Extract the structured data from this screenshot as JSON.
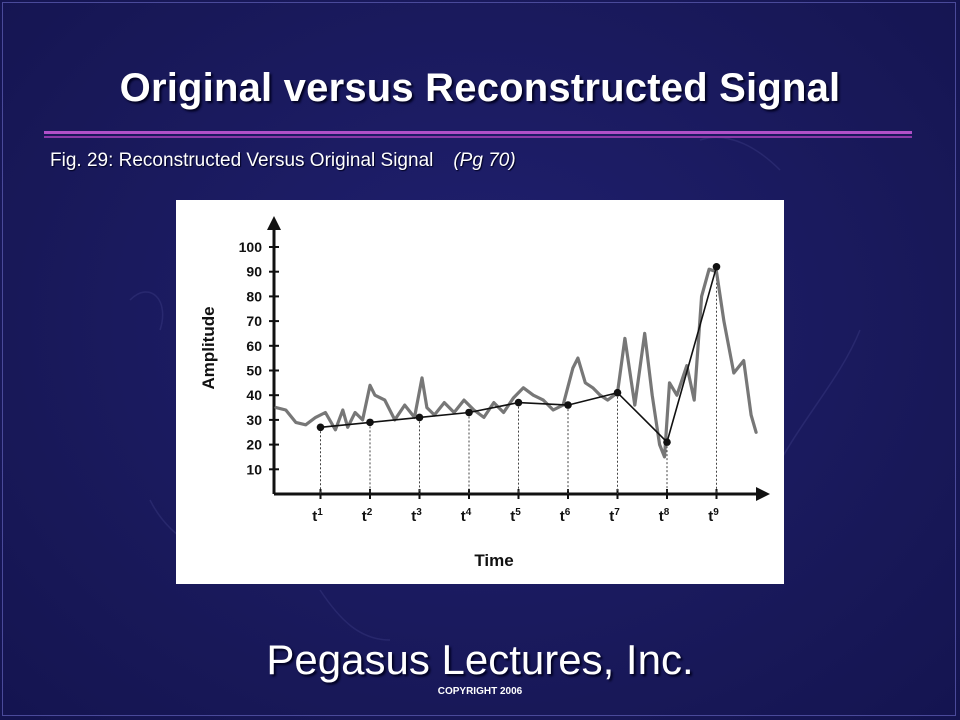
{
  "slide": {
    "title": "Original versus Reconstructed Signal",
    "subtitle": "Fig. 29: Reconstructed Versus Original Signal",
    "page_ref": "(Pg 70)",
    "footer": "Pegasus Lectures, Inc.",
    "copyright": "COPYRIGHT 2006",
    "colors": {
      "background": "#1a1a5e",
      "rule": "#b050c8",
      "text": "#ffffff"
    }
  },
  "chart_data": {
    "type": "line",
    "title": "",
    "xlabel": "Time",
    "ylabel": "Amplitude",
    "ylim": [
      0,
      100
    ],
    "yticks": [
      10,
      20,
      30,
      40,
      50,
      60,
      70,
      80,
      90,
      100
    ],
    "xticks": [
      {
        "base": "t",
        "sup": "1",
        "x": 1
      },
      {
        "base": "t",
        "sup": "2",
        "x": 2
      },
      {
        "base": "t",
        "sup": "3",
        "x": 3
      },
      {
        "base": "t",
        "sup": "4",
        "x": 4
      },
      {
        "base": "t",
        "sup": "5",
        "x": 5
      },
      {
        "base": "t",
        "sup": "6",
        "x": 6
      },
      {
        "base": "t",
        "sup": "7",
        "x": 7
      },
      {
        "base": "t",
        "sup": "8",
        "x": 8
      },
      {
        "base": "t",
        "sup": "9",
        "x": 9
      }
    ],
    "grid": false,
    "legend": "none",
    "series": [
      {
        "role": "original",
        "color": "#777777",
        "x": [
          0.1,
          0.3,
          0.5,
          0.7,
          0.9,
          1.1,
          1.3,
          1.45,
          1.55,
          1.7,
          1.85,
          2.0,
          2.1,
          2.3,
          2.5,
          2.7,
          2.9,
          3.05,
          3.15,
          3.3,
          3.5,
          3.7,
          3.9,
          4.1,
          4.3,
          4.5,
          4.7,
          4.9,
          5.1,
          5.3,
          5.5,
          5.7,
          5.9,
          6.1,
          6.2,
          6.35,
          6.5,
          6.65,
          6.8,
          7.0,
          7.15,
          7.35,
          7.55,
          7.7,
          7.85,
          7.95,
          8.05,
          8.2,
          8.4,
          8.55,
          8.7,
          8.85,
          9.0,
          9.15,
          9.35,
          9.55,
          9.7,
          9.8
        ],
        "y": [
          35,
          34,
          29,
          28,
          31,
          33,
          26,
          34,
          27,
          33,
          30,
          44,
          40,
          38,
          30,
          36,
          31,
          47,
          35,
          32,
          37,
          33,
          38,
          34,
          31,
          37,
          33,
          39,
          43,
          40,
          38,
          34,
          36,
          51,
          55,
          45,
          43,
          40,
          38,
          41,
          63,
          36,
          65,
          40,
          20,
          15,
          45,
          40,
          52,
          38,
          80,
          91,
          90,
          70,
          49,
          54,
          32,
          25
        ]
      },
      {
        "role": "reconstructed",
        "color": "#111111",
        "x": [
          1,
          2,
          3,
          4,
          5,
          6,
          7,
          8,
          9
        ],
        "y": [
          27,
          29,
          31,
          33,
          37,
          36,
          41,
          21,
          92
        ]
      }
    ]
  }
}
